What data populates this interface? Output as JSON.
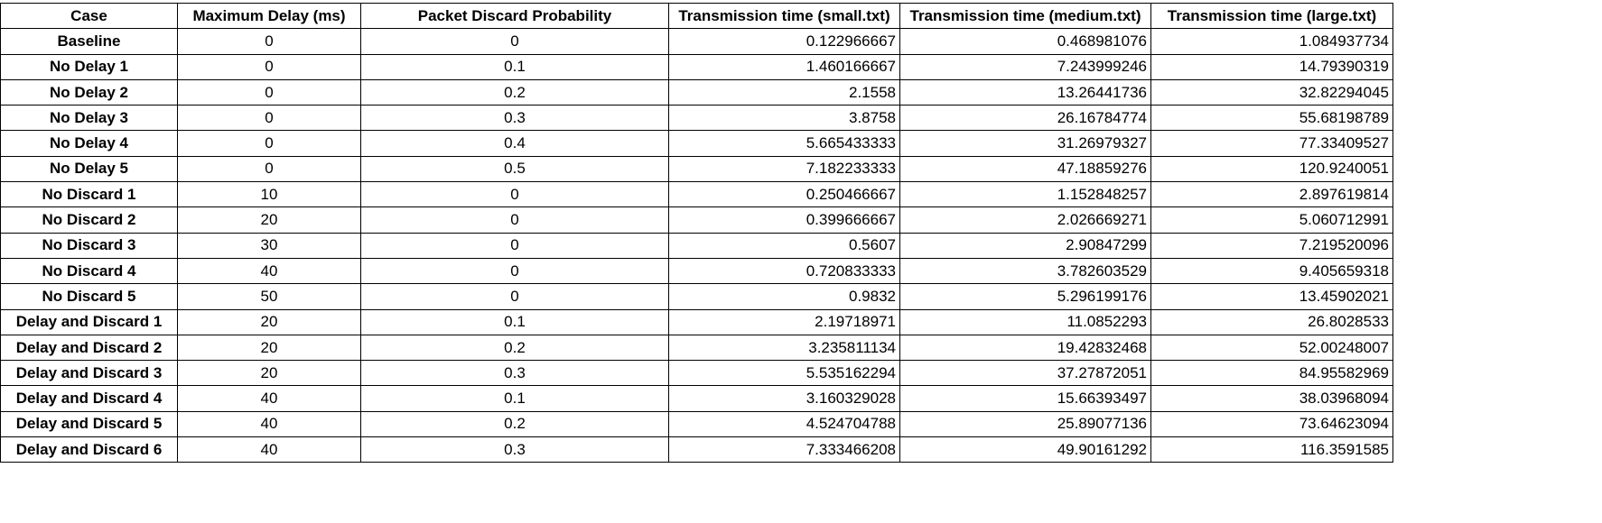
{
  "chart_data": {
    "type": "table",
    "columns": [
      "Case",
      "Maximum Delay (ms)",
      "Packet Discard Probability",
      "Transmission time (small.txt)",
      "Transmission time (medium.txt)",
      "Transmission time (large.txt)"
    ],
    "rows": [
      [
        "Baseline",
        "0",
        "0",
        "0.122966667",
        "0.468981076",
        "1.084937734"
      ],
      [
        "No Delay 1",
        "0",
        "0.1",
        "1.460166667",
        "7.243999246",
        "14.79390319"
      ],
      [
        "No Delay 2",
        "0",
        "0.2",
        "2.1558",
        "13.26441736",
        "32.82294045"
      ],
      [
        "No Delay 3",
        "0",
        "0.3",
        "3.8758",
        "26.16784774",
        "55.68198789"
      ],
      [
        "No Delay 4",
        "0",
        "0.4",
        "5.665433333",
        "31.26979327",
        "77.33409527"
      ],
      [
        "No Delay 5",
        "0",
        "0.5",
        "7.182233333",
        "47.18859276",
        "120.9240051"
      ],
      [
        "No Discard 1",
        "10",
        "0",
        "0.250466667",
        "1.152848257",
        "2.897619814"
      ],
      [
        "No Discard 2",
        "20",
        "0",
        "0.399666667",
        "2.026669271",
        "5.060712991"
      ],
      [
        "No Discard 3",
        "30",
        "0",
        "0.5607",
        "2.90847299",
        "7.219520096"
      ],
      [
        "No Discard 4",
        "40",
        "0",
        "0.720833333",
        "3.782603529",
        "9.405659318"
      ],
      [
        "No Discard 5",
        "50",
        "0",
        "0.9832",
        "5.296199176",
        "13.45902021"
      ],
      [
        "Delay and Discard 1",
        "20",
        "0.1",
        "2.19718971",
        "11.0852293",
        "26.8028533"
      ],
      [
        "Delay and Discard 2",
        "20",
        "0.2",
        "3.235811134",
        "19.42832468",
        "52.00248007"
      ],
      [
        "Delay and Discard 3",
        "20",
        "0.3",
        "5.535162294",
        "37.27872051",
        "84.95582969"
      ],
      [
        "Delay and Discard 4",
        "40",
        "0.1",
        "3.160329028",
        "15.66393497",
        "38.03968094"
      ],
      [
        "Delay and Discard 5",
        "40",
        "0.2",
        "4.524704788",
        "25.89077136",
        "73.64623094"
      ],
      [
        "Delay and Discard 6",
        "40",
        "0.3",
        "7.333466208",
        "49.90161292",
        "116.3591585"
      ]
    ]
  }
}
